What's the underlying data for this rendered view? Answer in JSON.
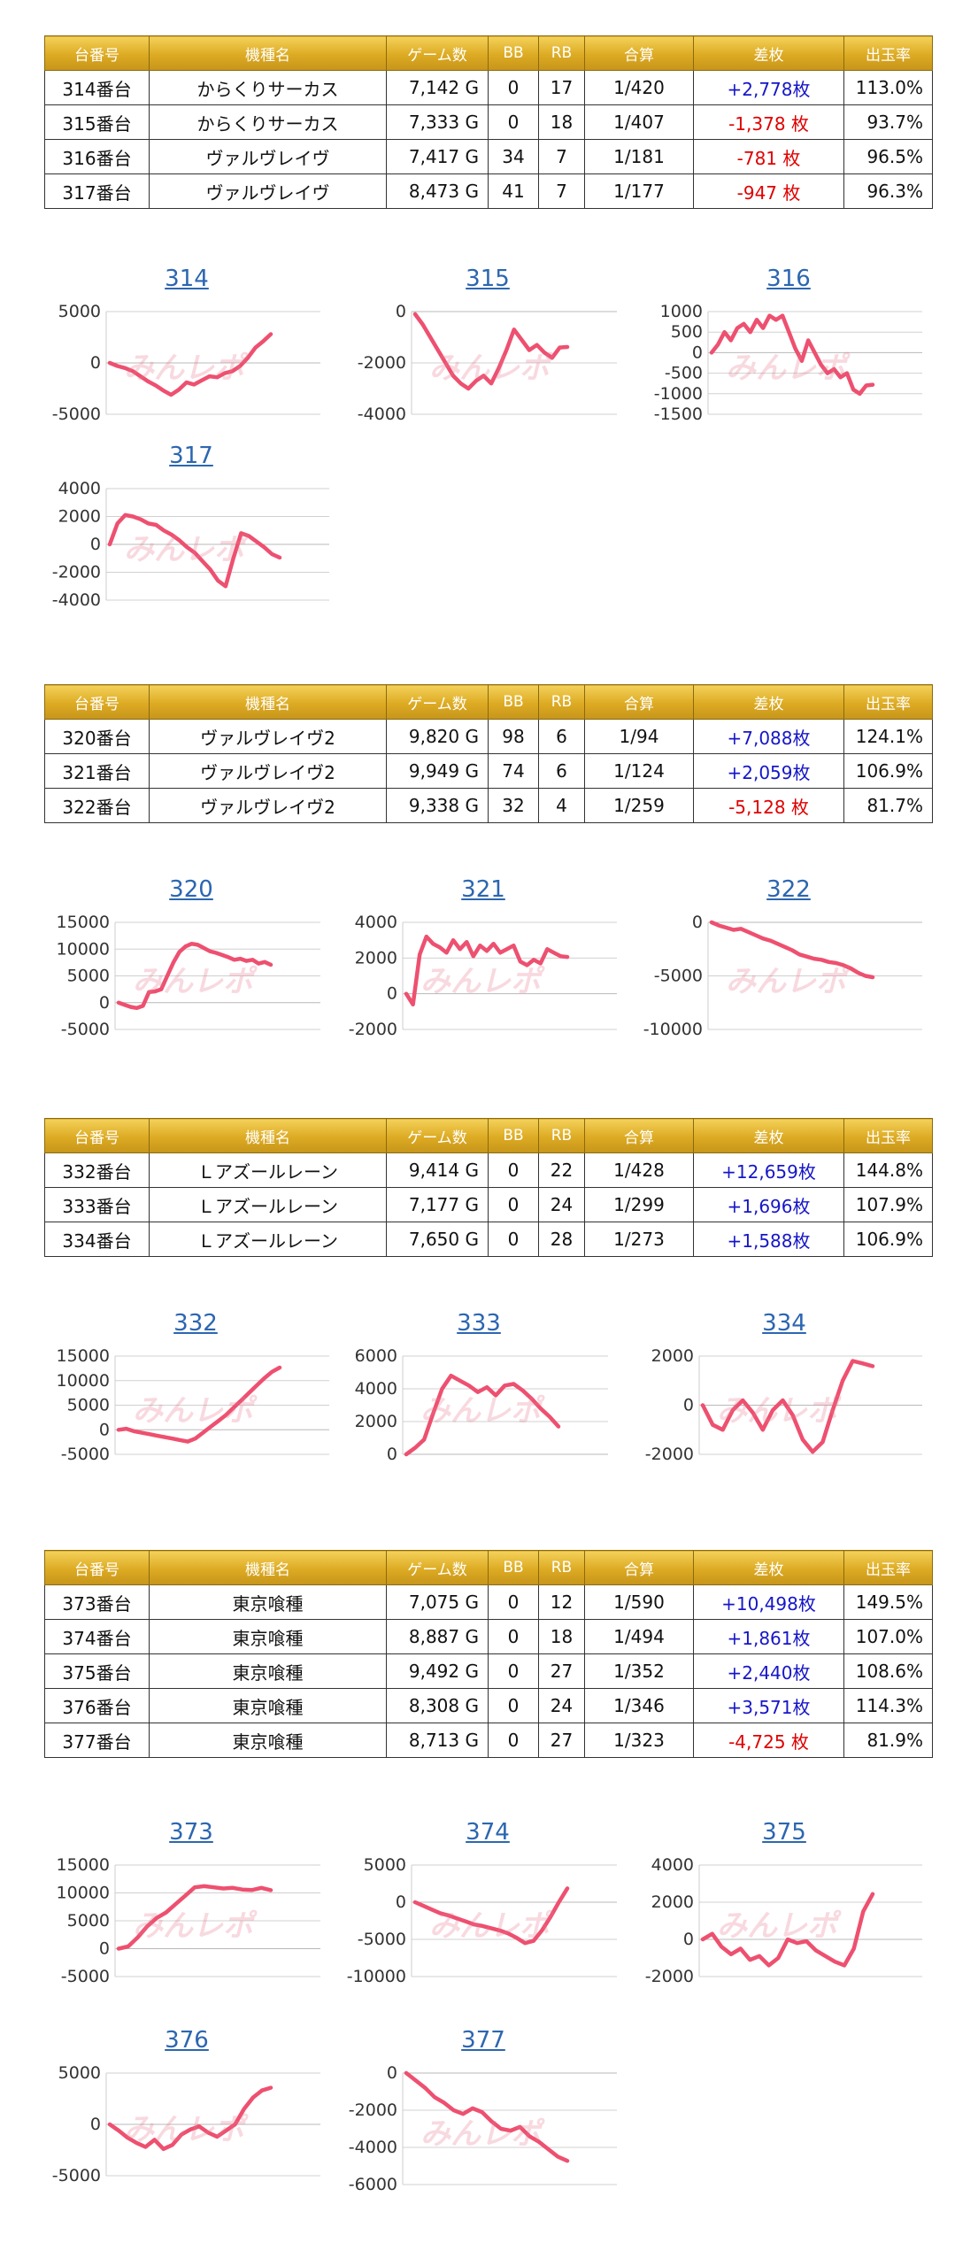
{
  "headers": [
    "台番号",
    "機種名",
    "ゲーム数",
    "BB",
    "RB",
    "合算",
    "差枚",
    "出玉率"
  ],
  "watermark": "みんレポ",
  "tables": [
    {
      "rows": [
        {
          "num": "314番台",
          "machine": "からくりサーカス",
          "games": "7,142 G",
          "bb": "0",
          "rb": "17",
          "combined": "1/420",
          "diff": "+2,778枚",
          "diff_sign": "pos",
          "rate": "113.0%"
        },
        {
          "num": "315番台",
          "machine": "からくりサーカス",
          "games": "7,333 G",
          "bb": "0",
          "rb": "18",
          "combined": "1/407",
          "diff": "-1,378 枚",
          "diff_sign": "neg",
          "rate": "93.7%"
        },
        {
          "num": "316番台",
          "machine": "ヴァルヴレイヴ",
          "games": "7,417 G",
          "bb": "34",
          "rb": "7",
          "combined": "1/181",
          "diff": "-781 枚",
          "diff_sign": "neg",
          "rate": "96.5%"
        },
        {
          "num": "317番台",
          "machine": "ヴァルヴレイヴ",
          "games": "8,473 G",
          "bb": "41",
          "rb": "7",
          "combined": "1/177",
          "diff": "-947 枚",
          "diff_sign": "neg",
          "rate": "96.3%"
        }
      ]
    },
    {
      "rows": [
        {
          "num": "320番台",
          "machine": "ヴァルヴレイヴ2",
          "games": "9,820 G",
          "bb": "98",
          "rb": "6",
          "combined": "1/94",
          "diff": "+7,088枚",
          "diff_sign": "pos",
          "rate": "124.1%"
        },
        {
          "num": "321番台",
          "machine": "ヴァルヴレイヴ2",
          "games": "9,949 G",
          "bb": "74",
          "rb": "6",
          "combined": "1/124",
          "diff": "+2,059枚",
          "diff_sign": "pos",
          "rate": "106.9%"
        },
        {
          "num": "322番台",
          "machine": "ヴァルヴレイヴ2",
          "games": "9,338 G",
          "bb": "32",
          "rb": "4",
          "combined": "1/259",
          "diff": "-5,128 枚",
          "diff_sign": "neg",
          "rate": "81.7%"
        }
      ]
    },
    {
      "rows": [
        {
          "num": "332番台",
          "machine": "Ｌアズールレーン",
          "games": "9,414 G",
          "bb": "0",
          "rb": "22",
          "combined": "1/428",
          "diff": "+12,659枚",
          "diff_sign": "pos",
          "rate": "144.8%"
        },
        {
          "num": "333番台",
          "machine": "Ｌアズールレーン",
          "games": "7,177 G",
          "bb": "0",
          "rb": "24",
          "combined": "1/299",
          "diff": "+1,696枚",
          "diff_sign": "pos",
          "rate": "107.9%"
        },
        {
          "num": "334番台",
          "machine": "Ｌアズールレーン",
          "games": "7,650 G",
          "bb": "0",
          "rb": "28",
          "combined": "1/273",
          "diff": "+1,588枚",
          "diff_sign": "pos",
          "rate": "106.9%"
        }
      ]
    },
    {
      "rows": [
        {
          "num": "373番台",
          "machine": "東京喰種",
          "games": "7,075 G",
          "bb": "0",
          "rb": "12",
          "combined": "1/590",
          "diff": "+10,498枚",
          "diff_sign": "pos",
          "rate": "149.5%"
        },
        {
          "num": "374番台",
          "machine": "東京喰種",
          "games": "8,887 G",
          "bb": "0",
          "rb": "18",
          "combined": "1/494",
          "diff": "+1,861枚",
          "diff_sign": "pos",
          "rate": "107.0%"
        },
        {
          "num": "375番台",
          "machine": "東京喰種",
          "games": "9,492 G",
          "bb": "0",
          "rb": "27",
          "combined": "1/352",
          "diff": "+2,440枚",
          "diff_sign": "pos",
          "rate": "108.6%"
        },
        {
          "num": "376番台",
          "machine": "東京喰種",
          "games": "8,308 G",
          "bb": "0",
          "rb": "24",
          "combined": "1/346",
          "diff": "+3,571枚",
          "diff_sign": "pos",
          "rate": "114.3%"
        },
        {
          "num": "377番台",
          "machine": "東京喰種",
          "games": "8,713 G",
          "bb": "0",
          "rb": "27",
          "combined": "1/323",
          "diff": "-4,725 枚",
          "diff_sign": "neg",
          "rate": "81.9%"
        }
      ]
    }
  ],
  "colors": {
    "line": "#ee5070",
    "gridline": "#d0d0d0",
    "axis": "#cccccc",
    "title": "#2c66b0",
    "positive": "#1616c8",
    "negative": "#e00000",
    "header_gold": "#dcaa22"
  },
  "chart_data": [
    {
      "type": "line",
      "title": "314",
      "ylim": [
        -5000,
        5000
      ],
      "yticks": [
        5000,
        0,
        -5000
      ],
      "values": [
        0,
        -300,
        -500,
        -800,
        -1300,
        -1800,
        -2200,
        -2700,
        -3100,
        -2600,
        -1900,
        -2100,
        -1700,
        -1300,
        -1400,
        -1000,
        -800,
        -300,
        500,
        1500,
        2100,
        2800
      ]
    },
    {
      "type": "line",
      "title": "315",
      "ylim": [
        -4000,
        0
      ],
      "yticks": [
        0,
        -2000,
        -4000
      ],
      "values": [
        -100,
        -500,
        -1000,
        -1500,
        -2000,
        -2500,
        -2800,
        -3000,
        -2700,
        -2500,
        -2800,
        -2200,
        -1500,
        -700,
        -1100,
        -1500,
        -1300,
        -1600,
        -1800,
        -1400,
        -1378
      ]
    },
    {
      "type": "line",
      "title": "316",
      "ylim": [
        -1500,
        1000
      ],
      "yticks": [
        1000,
        500,
        0,
        -500,
        -1000,
        -1500
      ],
      "values": [
        0,
        200,
        500,
        300,
        600,
        700,
        500,
        800,
        600,
        900,
        800,
        900,
        500,
        100,
        -200,
        300,
        0,
        -300,
        -500,
        -400,
        -600,
        -500,
        -900,
        -1000,
        -800,
        -781
      ]
    },
    {
      "type": "line",
      "title": "317",
      "ylim": [
        -4000,
        4000
      ],
      "yticks": [
        4000,
        2000,
        0,
        -2000,
        -4000
      ],
      "values": [
        0,
        1500,
        2100,
        2000,
        1800,
        1500,
        1400,
        1000,
        700,
        300,
        -200,
        -600,
        -1200,
        -1800,
        -2600,
        -3000,
        -1000,
        800,
        600,
        200,
        -200,
        -700,
        -947
      ]
    },
    {
      "type": "line",
      "title": "320",
      "ylim": [
        -5000,
        15000
      ],
      "yticks": [
        15000,
        10000,
        5000,
        0,
        -5000
      ],
      "values": [
        0,
        -400,
        -800,
        -1000,
        -600,
        2000,
        2100,
        2500,
        5000,
        7500,
        9500,
        10500,
        11000,
        10800,
        10200,
        9600,
        9300,
        8900,
        8500,
        8000,
        8200,
        7800,
        8000,
        7300,
        7600,
        7088
      ]
    },
    {
      "type": "line",
      "title": "321",
      "ylim": [
        -2000,
        4000
      ],
      "yticks": [
        4000,
        2000,
        0,
        -2000
      ],
      "values": [
        0,
        -600,
        2200,
        3200,
        2800,
        2600,
        2300,
        3000,
        2500,
        2900,
        2100,
        2700,
        2400,
        2800,
        2300,
        2500,
        2700,
        1800,
        1600,
        1900,
        1700,
        2500,
        2300,
        2100,
        2059
      ]
    },
    {
      "type": "line",
      "title": "322",
      "ylim": [
        -10000,
        0
      ],
      "yticks": [
        0,
        -5000,
        -10000
      ],
      "values": [
        0,
        -300,
        -500,
        -700,
        -600,
        -900,
        -1200,
        -1500,
        -1700,
        -2000,
        -2300,
        -2600,
        -3000,
        -3200,
        -3400,
        -3500,
        -3700,
        -3800,
        -4000,
        -4300,
        -4700,
        -5000,
        -5128
      ]
    },
    {
      "type": "line",
      "title": "332",
      "ylim": [
        -5000,
        15000
      ],
      "yticks": [
        15000,
        10000,
        5000,
        0,
        -5000
      ],
      "values": [
        0,
        200,
        -300,
        -600,
        -900,
        -1200,
        -1500,
        -1800,
        -2100,
        -2400,
        -1800,
        -600,
        600,
        1800,
        3000,
        4500,
        6000,
        7500,
        9000,
        10500,
        11800,
        12659
      ]
    },
    {
      "type": "line",
      "title": "333",
      "ylim": [
        0,
        6000
      ],
      "yticks": [
        6000,
        4000,
        2000,
        0
      ],
      "values": [
        0,
        400,
        900,
        2500,
        4000,
        4800,
        4500,
        4200,
        3800,
        4100,
        3600,
        4200,
        4300,
        3900,
        3400,
        2800,
        2300,
        1696
      ]
    },
    {
      "type": "line",
      "title": "334",
      "ylim": [
        -2000,
        2000
      ],
      "yticks": [
        2000,
        0,
        -2000
      ],
      "values": [
        0,
        -800,
        -1000,
        -200,
        200,
        -300,
        -1000,
        -200,
        200,
        -400,
        -1400,
        -1900,
        -1500,
        -200,
        1000,
        1800,
        1700,
        1588
      ]
    },
    {
      "type": "line",
      "title": "373",
      "ylim": [
        -5000,
        15000
      ],
      "yticks": [
        15000,
        10000,
        5000,
        0,
        -5000
      ],
      "values": [
        0,
        400,
        2000,
        4000,
        5500,
        6500,
        8000,
        9500,
        11000,
        11200,
        11000,
        10800,
        10900,
        10600,
        10500,
        10900,
        10498
      ]
    },
    {
      "type": "line",
      "title": "374",
      "ylim": [
        -10000,
        5000
      ],
      "yticks": [
        5000,
        0,
        -5000,
        -10000
      ],
      "values": [
        0,
        -500,
        -1000,
        -1500,
        -1800,
        -2200,
        -2600,
        -3000,
        -3200,
        -3500,
        -3800,
        -4200,
        -4800,
        -5500,
        -5200,
        -3800,
        -2000,
        0,
        1861
      ]
    },
    {
      "type": "line",
      "title": "375",
      "ylim": [
        -2000,
        4000
      ],
      "yticks": [
        4000,
        2000,
        0,
        -2000
      ],
      "values": [
        0,
        300,
        -400,
        -800,
        -500,
        -1100,
        -900,
        -1400,
        -1000,
        0,
        -200,
        -100,
        -600,
        -900,
        -1200,
        -1400,
        -500,
        1500,
        2440
      ]
    },
    {
      "type": "line",
      "title": "376",
      "ylim": [
        -5000,
        5000
      ],
      "yticks": [
        5000,
        0,
        -5000
      ],
      "values": [
        0,
        -600,
        -1300,
        -1800,
        -2200,
        -1500,
        -2400,
        -2000,
        -1000,
        -500,
        -200,
        -800,
        -1200,
        -600,
        0,
        1500,
        2600,
        3300,
        3571
      ]
    },
    {
      "type": "line",
      "title": "377",
      "ylim": [
        -6000,
        0
      ],
      "yticks": [
        0,
        -2000,
        -4000,
        -6000
      ],
      "values": [
        0,
        -400,
        -800,
        -1300,
        -1600,
        -2000,
        -2200,
        -1900,
        -2100,
        -2600,
        -3000,
        -3100,
        -2900,
        -3400,
        -3700,
        -4100,
        -4500,
        -4725
      ]
    }
  ]
}
